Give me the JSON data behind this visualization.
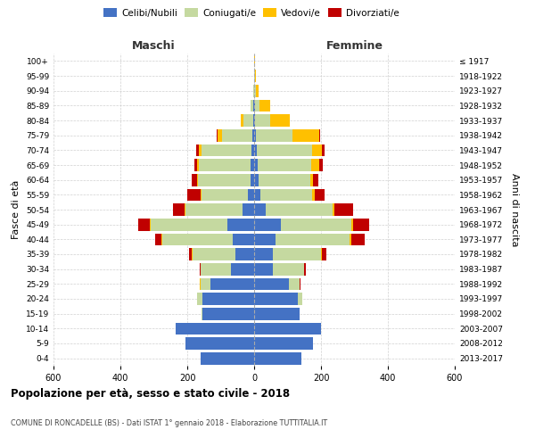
{
  "age_groups": [
    "0-4",
    "5-9",
    "10-14",
    "15-19",
    "20-24",
    "25-29",
    "30-34",
    "35-39",
    "40-44",
    "45-49",
    "50-54",
    "55-59",
    "60-64",
    "65-69",
    "70-74",
    "75-79",
    "80-84",
    "85-89",
    "90-94",
    "95-99",
    "100+"
  ],
  "birth_years": [
    "2013-2017",
    "2008-2012",
    "2003-2007",
    "1998-2002",
    "1993-1997",
    "1988-1992",
    "1983-1987",
    "1978-1982",
    "1973-1977",
    "1968-1972",
    "1963-1967",
    "1958-1962",
    "1953-1957",
    "1948-1952",
    "1943-1947",
    "1938-1942",
    "1933-1937",
    "1928-1932",
    "1923-1927",
    "1918-1922",
    "≤ 1917"
  ],
  "maschi_celibi": [
    160,
    205,
    235,
    155,
    155,
    130,
    70,
    55,
    65,
    80,
    35,
    18,
    12,
    10,
    8,
    5,
    2,
    2,
    0,
    0,
    0
  ],
  "maschi_coniugati": [
    0,
    0,
    0,
    2,
    15,
    30,
    90,
    130,
    210,
    230,
    170,
    140,
    155,
    155,
    150,
    90,
    30,
    8,
    3,
    0,
    0
  ],
  "maschi_vedovi": [
    0,
    0,
    0,
    0,
    0,
    2,
    0,
    2,
    2,
    2,
    2,
    2,
    3,
    5,
    8,
    15,
    8,
    2,
    0,
    0,
    0
  ],
  "maschi_divorziati": [
    0,
    0,
    0,
    0,
    0,
    2,
    3,
    8,
    18,
    35,
    35,
    40,
    18,
    10,
    8,
    2,
    0,
    0,
    0,
    0,
    0
  ],
  "femmine_celibi": [
    140,
    175,
    200,
    135,
    130,
    105,
    55,
    55,
    65,
    80,
    35,
    18,
    12,
    10,
    8,
    5,
    2,
    2,
    0,
    0,
    0
  ],
  "femmine_coniugate": [
    0,
    0,
    0,
    2,
    15,
    30,
    95,
    145,
    220,
    210,
    200,
    155,
    155,
    160,
    165,
    110,
    45,
    15,
    5,
    2,
    0
  ],
  "femmine_vedove": [
    0,
    0,
    0,
    0,
    0,
    2,
    0,
    2,
    5,
    5,
    5,
    8,
    10,
    25,
    30,
    80,
    60,
    30,
    8,
    2,
    2
  ],
  "femmine_divorziate": [
    0,
    0,
    0,
    0,
    0,
    2,
    5,
    15,
    40,
    50,
    55,
    30,
    15,
    10,
    8,
    2,
    0,
    0,
    0,
    0,
    0
  ],
  "colors": {
    "celibi": "#4472c4",
    "coniugati": "#c5d9a0",
    "vedovi": "#ffc000",
    "divorziati": "#c00000"
  },
  "xlim": 600,
  "title": "Popolazione per età, sesso e stato civile - 2018",
  "subtitle": "COMUNE DI RONCADELLE (BS) - Dati ISTAT 1° gennaio 2018 - Elaborazione TUTTITALIA.IT",
  "ylabel_left": "Fasce di età",
  "ylabel_right": "Anni di nascita",
  "xlabel_maschi": "Maschi",
  "xlabel_femmine": "Femmine",
  "bg_color": "#ffffff",
  "grid_color": "#cccccc"
}
